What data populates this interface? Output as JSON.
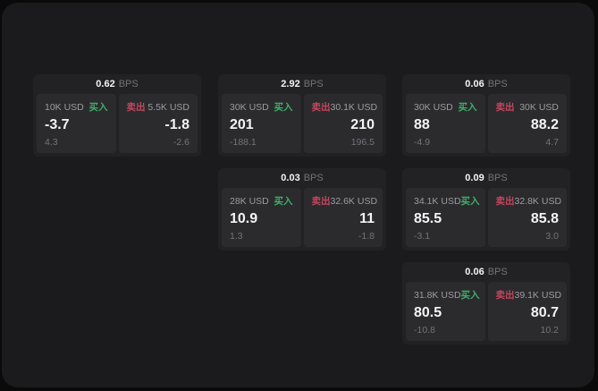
{
  "labels": {
    "bps_suffix": "BPS",
    "buy": "买入",
    "sell": "卖出"
  },
  "colors": {
    "buy_green": "#3fae6a",
    "sell_red": "#c4465c",
    "panel_bg": "#1b1b1d",
    "card_bg": "#222225",
    "tile_bg": "#2b2b2e"
  },
  "cards": [
    {
      "row": 0,
      "col": 0,
      "bps": "0.62",
      "buy": {
        "size": "10K USD",
        "value": "-3.7",
        "sub": "4.3"
      },
      "sell": {
        "size": "5.5K USD",
        "value": "-1.8",
        "sub": "-2.6"
      }
    },
    {
      "row": 0,
      "col": 1,
      "bps": "2.92",
      "buy": {
        "size": "30K USD",
        "value": "201",
        "sub": "-188.1"
      },
      "sell": {
        "size": "30.1K USD",
        "value": "210",
        "sub": "196.5"
      }
    },
    {
      "row": 0,
      "col": 2,
      "bps": "0.06",
      "buy": {
        "size": "30K USD",
        "value": "88",
        "sub": "-4.9"
      },
      "sell": {
        "size": "30K USD",
        "value": "88.2",
        "sub": "4.7"
      }
    },
    {
      "row": 1,
      "col": 1,
      "bps": "0.03",
      "buy": {
        "size": "28K USD",
        "value": "10.9",
        "sub": "1.3"
      },
      "sell": {
        "size": "32.6K USD",
        "value": "11",
        "sub": "-1.8"
      }
    },
    {
      "row": 1,
      "col": 2,
      "bps": "0.09",
      "buy": {
        "size": "34.1K USD",
        "value": "85.5",
        "sub": "-3.1"
      },
      "sell": {
        "size": "32.8K USD",
        "value": "85.8",
        "sub": "3.0"
      }
    },
    {
      "row": 2,
      "col": 2,
      "bps": "0.06",
      "buy": {
        "size": "31.8K USD",
        "value": "80.5",
        "sub": "-10.8"
      },
      "sell": {
        "size": "39.1K USD",
        "value": "80.7",
        "sub": "10.2"
      }
    }
  ]
}
